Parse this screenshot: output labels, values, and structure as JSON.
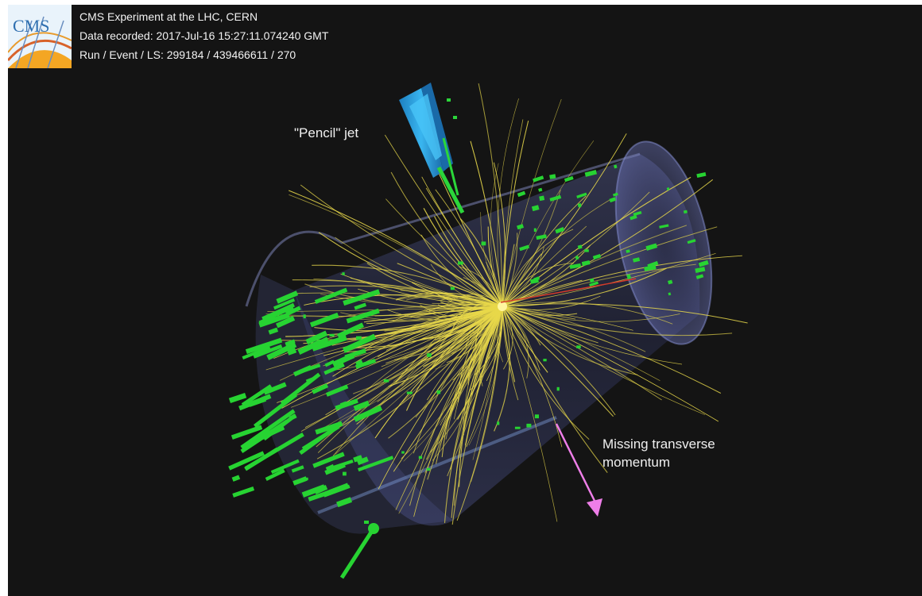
{
  "event_info": {
    "line1": "CMS Experiment at the LHC, CERN",
    "line2": "Data recorded: 2017-Jul-16 15:27:11.074240 GMT",
    "line3": "Run / Event / LS: 299184 / 439466611 / 270"
  },
  "logo": {
    "text": "CMS",
    "icon": "cms-logo"
  },
  "annotations": {
    "pencil_jet": "\"Pencil\" jet",
    "missing_line1": "Missing transverse",
    "missing_line2": "momentum"
  },
  "colors": {
    "background": "#141414",
    "tracks": "#e8d84a",
    "hits": "#27d332",
    "jet": "#2aa8e8",
    "met_arrow": "#ee7ee8",
    "detector": "#4a5a9a"
  }
}
